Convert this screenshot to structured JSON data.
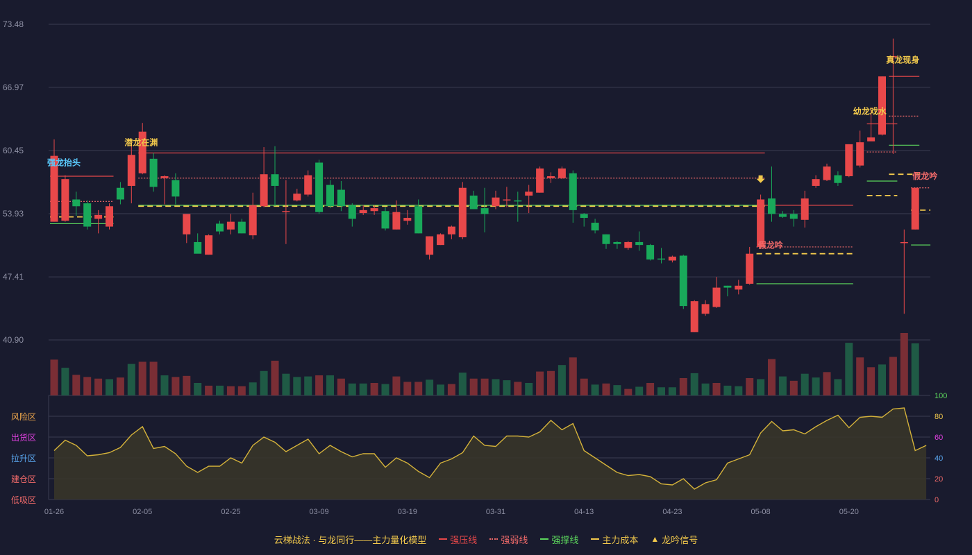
{
  "chart_data": {
    "type": "candlestick",
    "price_axis": {
      "ticks": [
        "73.48",
        "66.97",
        "60.45",
        "53.93",
        "47.41",
        "40.90"
      ],
      "min": 40.9,
      "max": 73.48
    },
    "x_ticks": [
      {
        "label": "01-26",
        "index": 0
      },
      {
        "label": "02-05",
        "index": 8
      },
      {
        "label": "02-25",
        "index": 16
      },
      {
        "label": "03-09",
        "index": 24
      },
      {
        "label": "03-19",
        "index": 32
      },
      {
        "label": "03-31",
        "index": 40
      },
      {
        "label": "04-13",
        "index": 48
      },
      {
        "label": "04-23",
        "index": 56
      },
      {
        "label": "05-08",
        "index": 64
      },
      {
        "label": "05-20",
        "index": 72
      }
    ],
    "candles": [
      [
        53.1,
        59.9,
        53.1,
        61.6
      ],
      [
        53.2,
        57.5,
        53.1,
        57.9
      ],
      [
        55.4,
        54.7,
        53.7,
        56.2
      ],
      [
        55.0,
        52.6,
        52.3,
        55.3
      ],
      [
        53.4,
        53.8,
        51.9,
        54.3
      ],
      [
        52.6,
        54.7,
        52.3,
        55.0
      ],
      [
        56.6,
        55.4,
        54.9,
        57.2
      ],
      [
        56.8,
        60.0,
        55.0,
        61.3
      ],
      [
        58.1,
        62.4,
        58.0,
        63.3
      ],
      [
        59.6,
        56.7,
        56.2,
        60.2
      ],
      [
        57.6,
        57.8,
        54.9,
        57.9
      ],
      [
        57.4,
        55.7,
        54.9,
        58.1
      ],
      [
        51.8,
        53.9,
        50.9,
        53.9
      ],
      [
        51.0,
        49.8,
        49.9,
        51.9
      ],
      [
        49.7,
        51.7,
        49.7,
        51.8
      ],
      [
        52.9,
        52.1,
        51.8,
        53.2
      ],
      [
        52.3,
        53.1,
        51.8,
        53.9
      ],
      [
        53.1,
        51.9,
        51.9,
        53.4
      ],
      [
        51.7,
        54.8,
        51.3,
        56.1
      ],
      [
        54.7,
        58.0,
        54.6,
        60.8
      ],
      [
        58.0,
        56.8,
        54.7,
        60.9
      ],
      [
        54.1,
        54.2,
        50.8,
        57.4
      ],
      [
        55.3,
        56.0,
        55.2,
        56.5
      ],
      [
        55.9,
        57.9,
        55.7,
        58.4
      ],
      [
        59.2,
        54.1,
        53.9,
        59.5
      ],
      [
        56.9,
        54.7,
        54.5,
        57.4
      ],
      [
        56.4,
        54.7,
        54.2,
        57.3
      ],
      [
        54.8,
        53.4,
        52.6,
        55.0
      ],
      [
        54.0,
        54.3,
        53.8,
        54.8
      ],
      [
        54.2,
        54.5,
        53.8,
        54.8
      ],
      [
        54.2,
        52.4,
        52.2,
        54.6
      ],
      [
        52.3,
        54.1,
        52.3,
        55.3
      ],
      [
        53.2,
        53.5,
        52.8,
        54.3
      ],
      [
        54.7,
        51.9,
        51.9,
        55.4
      ],
      [
        49.7,
        51.6,
        49.2,
        51.6
      ],
      [
        50.7,
        51.8,
        50.7,
        51.9
      ],
      [
        51.8,
        52.6,
        51.3,
        52.7
      ],
      [
        51.5,
        56.6,
        51.3,
        57.2
      ],
      [
        55.8,
        54.4,
        54.4,
        56.3
      ],
      [
        54.5,
        53.9,
        52.0,
        56.6
      ],
      [
        54.7,
        55.6,
        54.4,
        56.3
      ],
      [
        55.4,
        55.4,
        54.6,
        56.7
      ],
      [
        55.3,
        55.2,
        53.1,
        56.2
      ],
      [
        55.8,
        56.2,
        54.0,
        56.9
      ],
      [
        56.1,
        58.6,
        56.1,
        58.8
      ],
      [
        57.6,
        57.8,
        57.1,
        58.2
      ],
      [
        57.6,
        58.6,
        57.5,
        58.8
      ],
      [
        58.1,
        54.3,
        53.0,
        58.4
      ],
      [
        53.9,
        53.5,
        52.6,
        54.0
      ],
      [
        53.0,
        52.2,
        51.9,
        53.4
      ],
      [
        51.8,
        50.8,
        50.3,
        51.8
      ],
      [
        51.0,
        50.8,
        50.3,
        51.1
      ],
      [
        50.4,
        51.0,
        50.2,
        51.1
      ],
      [
        51.0,
        50.7,
        50.1,
        52.1
      ],
      [
        50.7,
        49.2,
        49.1,
        50.8
      ],
      [
        49.3,
        49.2,
        48.8,
        50.4
      ],
      [
        49.1,
        49.5,
        48.9,
        49.6
      ],
      [
        49.6,
        44.4,
        44.1,
        49.7
      ],
      [
        41.7,
        44.9,
        41.7,
        45.0
      ],
      [
        43.6,
        44.6,
        43.4,
        45.0
      ],
      [
        44.3,
        46.3,
        44.2,
        47.4
      ],
      [
        46.5,
        46.3,
        45.4,
        46.5
      ],
      [
        46.1,
        46.5,
        45.6,
        47.1
      ],
      [
        46.7,
        49.8,
        46.6,
        50.5
      ],
      [
        50.5,
        55.4,
        50.4,
        55.9
      ],
      [
        55.5,
        53.9,
        53.1,
        58.8
      ],
      [
        53.9,
        53.6,
        53.5,
        54.2
      ],
      [
        53.9,
        53.4,
        52.6,
        54.3
      ],
      [
        53.3,
        55.5,
        52.5,
        56.3
      ],
      [
        56.8,
        57.5,
        56.6,
        57.9
      ],
      [
        57.4,
        58.8,
        57.3,
        59.1
      ],
      [
        57.9,
        57.1,
        56.8,
        58.3
      ],
      [
        57.8,
        61.1,
        57.7,
        61.1
      ],
      [
        58.9,
        61.3,
        58.7,
        62.5
      ],
      [
        61.4,
        61.8,
        61.5,
        64.8
      ],
      [
        62.1,
        68.1,
        62.0,
        68.1
      ],
      [
        70.2,
        70.2,
        60.1,
        72.0
      ],
      [
        51.0,
        51.0,
        43.6,
        52.3
      ],
      [
        52.3,
        56.6,
        52.3,
        56.6
      ]
    ],
    "volumes": [
      66,
      51,
      38,
      34,
      31,
      30,
      33,
      58,
      62,
      62,
      37,
      34,
      36,
      23,
      18,
      18,
      17,
      17,
      24,
      45,
      64,
      40,
      34,
      35,
      37,
      37,
      31,
      22,
      22,
      23,
      21,
      35,
      25,
      25,
      29,
      20,
      21,
      42,
      31,
      31,
      30,
      28,
      25,
      23,
      44,
      45,
      56,
      70,
      31,
      20,
      22,
      19,
      12,
      16,
      23,
      15,
      15,
      32,
      41,
      22,
      23,
      18,
      17,
      32,
      30,
      67,
      35,
      27,
      40,
      33,
      43,
      30,
      97,
      70,
      52,
      57,
      71,
      115,
      96
    ],
    "volume_colors": [
      "r",
      "g",
      "r",
      "r",
      "r",
      "g",
      "r",
      "g",
      "r",
      "r",
      "g",
      "r",
      "r",
      "g",
      "r",
      "g",
      "r",
      "r",
      "g",
      "g",
      "r",
      "g",
      "g",
      "g",
      "r",
      "g",
      "r",
      "g",
      "g",
      "r",
      "g",
      "r",
      "r",
      "r",
      "g",
      "g",
      "r",
      "g",
      "r",
      "r",
      "g",
      "g",
      "r",
      "g",
      "r",
      "r",
      "g",
      "r",
      "r",
      "g",
      "r",
      "g",
      "r",
      "g",
      "r",
      "g",
      "g",
      "r",
      "g",
      "g",
      "r",
      "g",
      "g",
      "r",
      "g",
      "r",
      "g",
      "r",
      "g",
      "g",
      "r",
      "g",
      "g",
      "r",
      "r",
      "g",
      "r",
      "r",
      "g"
    ],
    "indicator": {
      "axis_ticks": [
        "100",
        "80",
        "60",
        "40",
        "20",
        "0"
      ],
      "zones": [
        "风险区",
        "出货区",
        "拉升区",
        "建仓区",
        "低吸区"
      ],
      "values": [
        47,
        57,
        52,
        42,
        43,
        45,
        50,
        62,
        70,
        49,
        51,
        44,
        32,
        26,
        32,
        32,
        40,
        35,
        52,
        60,
        55,
        46,
        52,
        58,
        44,
        52,
        46,
        41,
        44,
        44,
        31,
        40,
        35,
        27,
        21,
        35,
        39,
        45,
        61,
        52,
        51,
        61,
        61,
        60,
        65,
        76,
        67,
        73,
        47,
        40,
        33,
        26,
        23,
        24,
        22,
        15,
        14,
        20,
        10,
        16,
        19,
        35,
        39,
        43,
        64,
        75,
        66,
        67,
        63,
        70,
        76,
        81,
        69,
        79,
        80,
        79,
        87,
        88,
        47,
        52
      ]
    },
    "lines": {
      "pressure": [
        {
          "from": 0,
          "to": 5,
          "y": 57.8
        },
        {
          "from": 8,
          "to": 64,
          "y": 60.2
        },
        {
          "from": 64,
          "to": 72,
          "y": 54.8
        },
        {
          "from": 74,
          "to": 76,
          "y": 63.2
        },
        {
          "from": 76,
          "to": 78,
          "y": 68.1
        }
      ],
      "weak": [
        {
          "from": 0,
          "to": 5,
          "y": 55.2
        },
        {
          "from": 8,
          "to": 64,
          "y": 57.6
        },
        {
          "from": 64,
          "to": 72,
          "y": 50.5
        },
        {
          "from": 74,
          "to": 76,
          "y": 60.3
        },
        {
          "from": 76,
          "to": 78,
          "y": 64.0
        },
        {
          "from": 78,
          "to": 79,
          "y": 56.6
        }
      ],
      "support": [
        {
          "from": 0,
          "to": 5,
          "y": 52.9
        },
        {
          "from": 8,
          "to": 64,
          "y": 54.8
        },
        {
          "from": 64,
          "to": 72,
          "y": 46.7
        },
        {
          "from": 74,
          "to": 76,
          "y": 57.3
        },
        {
          "from": 76,
          "to": 78,
          "y": 61.0
        },
        {
          "from": 78,
          "to": 79,
          "y": 50.7
        }
      ],
      "cost": [
        {
          "from": 0,
          "to": 5,
          "y": 53.6
        },
        {
          "from": 8,
          "to": 64,
          "y": 54.7
        },
        {
          "from": 64,
          "to": 72,
          "y": 49.8
        },
        {
          "from": 74,
          "to": 76,
          "y": 55.8
        },
        {
          "from": 76,
          "to": 78,
          "y": 58.0
        },
        {
          "from": 78,
          "to": 79,
          "y": 54.3
        }
      ]
    },
    "annotations": [
      {
        "text": "强龙抬头",
        "index": 0,
        "price": 58.9,
        "color": "#5ac8fa"
      },
      {
        "text": "潜龙在渊",
        "index": 7,
        "price": 61.0,
        "color": "#f2c94c"
      },
      {
        "text": "假龙吟",
        "index": 64,
        "price": 50.4,
        "color": "#f06a6a"
      },
      {
        "text": "幼龙戏水",
        "index": 73,
        "price": 64.2,
        "color": "#f2c94c"
      },
      {
        "text": "真龙现身",
        "index": 76,
        "price": 69.5,
        "color": "#f2c94c"
      },
      {
        "text": "假龙吟",
        "index": 78,
        "price": 57.5,
        "color": "#f06a6a"
      }
    ],
    "signals": [
      {
        "index": 64,
        "price": 56.6
      }
    ],
    "legend": {
      "title": "云梯战法 · 与龙同行——主力量化模型",
      "items": [
        {
          "label": "强压线",
          "color": "#e8484a",
          "style": "solid"
        },
        {
          "label": "强弱线",
          "color": "#f06a6a",
          "style": "dotted"
        },
        {
          "label": "强撑线",
          "color": "#5cd65c",
          "style": "solid"
        },
        {
          "label": "主力成本",
          "color": "#f2c94c",
          "style": "dashed"
        },
        {
          "label": "龙吟信号",
          "color": "#f2c94c",
          "style": "triangle"
        }
      ]
    },
    "colors": {
      "up": "#e8484a",
      "down": "#19a95a",
      "background": "#191b2e",
      "grid": "#3a3c52",
      "axis_text": "#8e90a4",
      "indicator_line": "#d4b23a",
      "indicator_axis": "#5cd65c"
    }
  }
}
